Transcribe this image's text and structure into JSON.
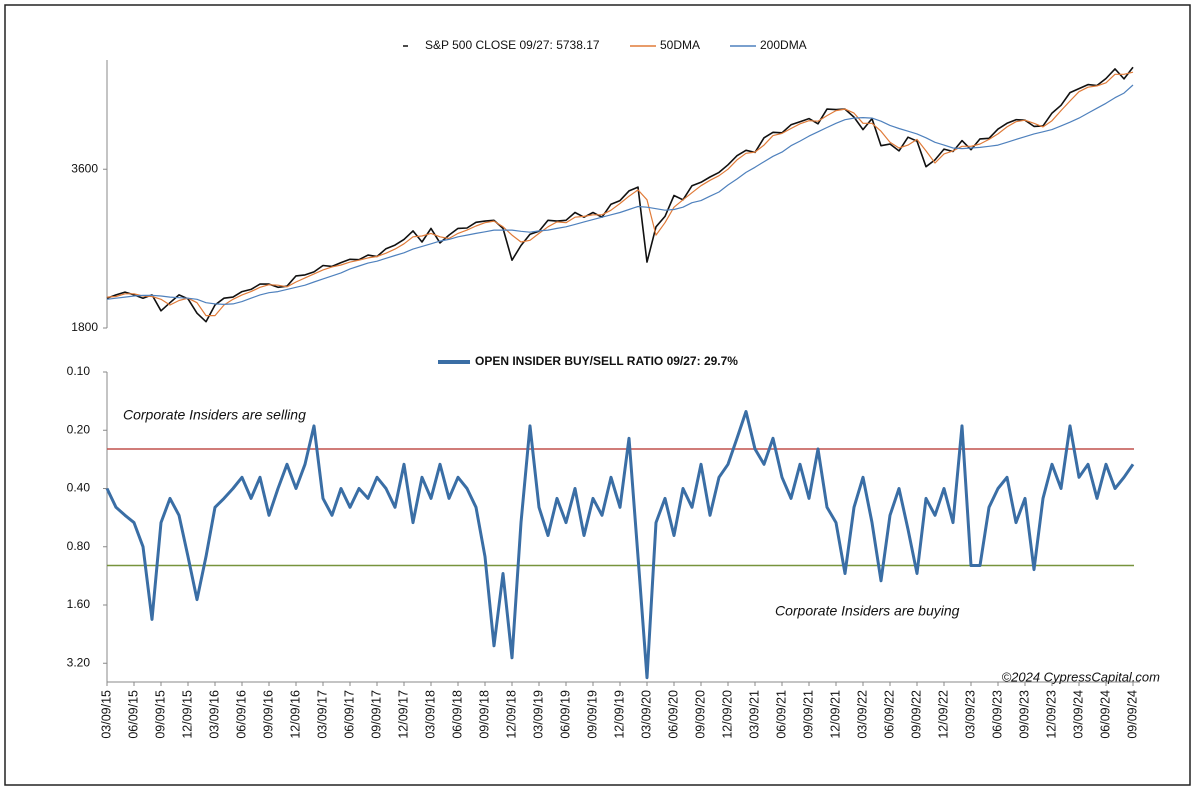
{
  "chart_data": [
    {
      "type": "line",
      "log_scale": true,
      "grid": false,
      "ylim": [
        1800,
        5800
      ],
      "yticks": [
        1800,
        3600
      ],
      "series": [
        {
          "name": "S&P 500 CLOSE 09/27: 5738.17",
          "color": "#111111",
          "values": [
            2050,
            2080,
            2105,
            2080,
            2050,
            2080,
            1940,
            2010,
            2080,
            2045,
            1920,
            1850,
            1990,
            2050,
            2060,
            2110,
            2130,
            2180,
            2180,
            2150,
            2160,
            2260,
            2270,
            2300,
            2365,
            2355,
            2395,
            2430,
            2425,
            2475,
            2460,
            2545,
            2585,
            2650,
            2750,
            2620,
            2780,
            2610,
            2700,
            2780,
            2785,
            2855,
            2870,
            2880,
            2780,
            2420,
            2580,
            2710,
            2745,
            2880,
            2870,
            2880,
            2980,
            2920,
            2980,
            2920,
            3090,
            3140,
            3275,
            3330,
            2400,
            2800,
            2930,
            3210,
            3150,
            3350,
            3400,
            3480,
            3550,
            3670,
            3820,
            3910,
            3875,
            4130,
            4230,
            4220,
            4370,
            4430,
            4490,
            4390,
            4680,
            4670,
            4680,
            4520,
            4280,
            4490,
            3990,
            4020,
            3900,
            4140,
            4070,
            3640,
            3750,
            3930,
            3890,
            4080,
            3920,
            4110,
            4120,
            4290,
            4400,
            4470,
            4460,
            4340,
            4350,
            4600,
            4760,
            5030,
            5120,
            5210,
            5190,
            5350,
            5580,
            5340,
            5620
          ]
        },
        {
          "name": "50DMA",
          "color": "#e07b39",
          "values": [
            2060,
            2065,
            2090,
            2090,
            2070,
            2065,
            2040,
            1990,
            2030,
            2050,
            2010,
            1900,
            1900,
            1990,
            2040,
            2080,
            2110,
            2150,
            2175,
            2170,
            2155,
            2200,
            2240,
            2280,
            2320,
            2350,
            2370,
            2400,
            2420,
            2445,
            2460,
            2495,
            2540,
            2600,
            2680,
            2690,
            2720,
            2680,
            2660,
            2720,
            2760,
            2810,
            2850,
            2870,
            2800,
            2700,
            2620,
            2640,
            2720,
            2800,
            2860,
            2850,
            2920,
            2930,
            2950,
            2950,
            3010,
            3100,
            3200,
            3290,
            3150,
            2700,
            2850,
            3050,
            3150,
            3250,
            3350,
            3430,
            3500,
            3600,
            3750,
            3860,
            3880,
            4000,
            4170,
            4210,
            4300,
            4390,
            4450,
            4440,
            4550,
            4650,
            4680,
            4600,
            4400,
            4400,
            4250,
            4050,
            3950,
            4000,
            4100,
            3900,
            3700,
            3850,
            3900,
            3980,
            3980,
            4020,
            4100,
            4200,
            4330,
            4430,
            4460,
            4400,
            4330,
            4450,
            4650,
            4850,
            5050,
            5150,
            5180,
            5250,
            5450,
            5450,
            5500
          ]
        },
        {
          "name": "200DMA",
          "color": "#4f81bd",
          "values": [
            2040,
            2050,
            2060,
            2070,
            2075,
            2075,
            2070,
            2060,
            2055,
            2050,
            2040,
            2010,
            2000,
            1995,
            2000,
            2020,
            2050,
            2080,
            2100,
            2110,
            2130,
            2150,
            2170,
            2200,
            2230,
            2260,
            2290,
            2330,
            2360,
            2390,
            2410,
            2440,
            2470,
            2500,
            2540,
            2570,
            2600,
            2630,
            2650,
            2680,
            2700,
            2720,
            2740,
            2760,
            2760,
            2760,
            2745,
            2735,
            2750,
            2760,
            2780,
            2800,
            2830,
            2860,
            2890,
            2920,
            2950,
            2980,
            3020,
            3060,
            3050,
            3030,
            3010,
            3020,
            3050,
            3110,
            3140,
            3200,
            3260,
            3360,
            3450,
            3550,
            3630,
            3720,
            3810,
            3880,
            3990,
            4070,
            4160,
            4240,
            4320,
            4400,
            4470,
            4500,
            4510,
            4500,
            4440,
            4360,
            4300,
            4250,
            4200,
            4130,
            4050,
            4000,
            3950,
            3940,
            3950,
            3960,
            3980,
            4000,
            4050,
            4100,
            4150,
            4200,
            4240,
            4280,
            4350,
            4420,
            4500,
            4600,
            4700,
            4800,
            4920,
            5020,
            5200
          ]
        }
      ]
    },
    {
      "type": "line",
      "log_scale": true,
      "y_inverted": true,
      "grid": false,
      "ylim": [
        0.1,
        4
      ],
      "yticks": [
        {
          "value": 0.1,
          "label": "0.10"
        },
        {
          "value": 0.2,
          "label": "0.20"
        },
        {
          "value": 0.4,
          "label": "0.40"
        },
        {
          "value": 0.8,
          "label": "0.80"
        },
        {
          "value": 1.6,
          "label": "1.60"
        },
        {
          "value": 3.2,
          "label": "3.20"
        }
      ],
      "x": [
        "03/09/15",
        "04/09/15",
        "05/09/15",
        "06/09/15",
        "07/09/15",
        "08/09/15",
        "09/09/15",
        "10/09/15",
        "11/09/15",
        "12/09/15",
        "01/09/16",
        "02/09/16",
        "03/09/16",
        "04/09/16",
        "05/09/16",
        "06/09/16",
        "07/09/16",
        "08/09/16",
        "09/09/16",
        "10/09/16",
        "11/09/16",
        "12/09/16",
        "01/09/17",
        "02/09/17",
        "03/09/17",
        "04/09/17",
        "05/09/17",
        "06/09/17",
        "07/09/17",
        "08/09/17",
        "09/09/17",
        "10/09/17",
        "11/09/17",
        "12/09/17",
        "01/09/18",
        "02/09/18",
        "03/09/18",
        "04/09/18",
        "05/09/18",
        "06/09/18",
        "07/09/18",
        "08/09/18",
        "09/09/18",
        "10/09/18",
        "11/09/18",
        "12/09/18",
        "01/09/19",
        "02/09/19",
        "03/09/19",
        "04/09/19",
        "05/09/19",
        "06/09/19",
        "07/09/19",
        "08/09/19",
        "09/09/19",
        "10/09/19",
        "11/09/19",
        "12/09/19",
        "01/09/20",
        "02/09/20",
        "03/09/20",
        "04/09/20",
        "05/09/20",
        "06/09/20",
        "07/09/20",
        "08/09/20",
        "09/09/20",
        "10/09/20",
        "11/09/20",
        "12/09/20",
        "01/09/21",
        "02/09/21",
        "03/09/21",
        "04/09/21",
        "05/09/21",
        "06/09/21",
        "07/09/21",
        "08/09/21",
        "09/09/21",
        "10/09/21",
        "11/09/21",
        "12/09/21",
        "01/09/22",
        "02/09/22",
        "03/09/22",
        "04/09/22",
        "05/09/22",
        "06/09/22",
        "07/09/22",
        "08/09/22",
        "09/09/22",
        "10/09/22",
        "11/09/22",
        "12/09/22",
        "01/09/23",
        "02/09/23",
        "03/09/23",
        "04/09/23",
        "05/09/23",
        "06/09/23",
        "07/09/23",
        "08/09/23",
        "09/09/23",
        "10/09/23",
        "11/09/23",
        "12/09/23",
        "01/09/24",
        "02/09/24",
        "03/09/24",
        "04/09/24",
        "05/09/24",
        "06/09/24",
        "07/09/24",
        "08/09/24",
        "09/09/24"
      ],
      "xtick_every": 3,
      "series": [
        {
          "name": "OPEN INSIDER BUY/SELL RATIO 09/27: 29.7%",
          "color": "#3a6ea5",
          "values": [
            0.4,
            0.5,
            0.55,
            0.6,
            0.8,
            1.9,
            0.6,
            0.45,
            0.55,
            0.9,
            1.5,
            0.9,
            0.5,
            0.45,
            0.4,
            0.35,
            0.45,
            0.35,
            0.55,
            0.4,
            0.3,
            0.4,
            0.3,
            0.19,
            0.45,
            0.55,
            0.4,
            0.5,
            0.4,
            0.45,
            0.35,
            0.4,
            0.5,
            0.3,
            0.6,
            0.35,
            0.45,
            0.3,
            0.45,
            0.35,
            0.4,
            0.5,
            0.9,
            2.6,
            1.1,
            3.0,
            0.6,
            0.19,
            0.5,
            0.7,
            0.45,
            0.6,
            0.4,
            0.7,
            0.45,
            0.55,
            0.35,
            0.5,
            0.22,
            0.9,
            3.8,
            0.6,
            0.45,
            0.7,
            0.4,
            0.5,
            0.3,
            0.55,
            0.35,
            0.3,
            0.22,
            0.16,
            0.25,
            0.3,
            0.22,
            0.35,
            0.45,
            0.3,
            0.45,
            0.25,
            0.5,
            0.6,
            1.1,
            0.5,
            0.35,
            0.6,
            1.2,
            0.55,
            0.4,
            0.65,
            1.1,
            0.45,
            0.55,
            0.4,
            0.6,
            0.19,
            1.0,
            1.0,
            0.5,
            0.4,
            0.35,
            0.6,
            0.45,
            1.05,
            0.45,
            0.3,
            0.4,
            0.19,
            0.35,
            0.3,
            0.45,
            0.3,
            0.4,
            0.35,
            0.3
          ]
        }
      ],
      "hlines": [
        {
          "value": 0.25,
          "color": "#c0504d"
        },
        {
          "value": 1.0,
          "color": "#77933c"
        }
      ],
      "annotations": [
        "Corporate Insiders are selling",
        "Corporate Insiders are buying",
        "©2024 CypressCapital.com"
      ]
    }
  ]
}
